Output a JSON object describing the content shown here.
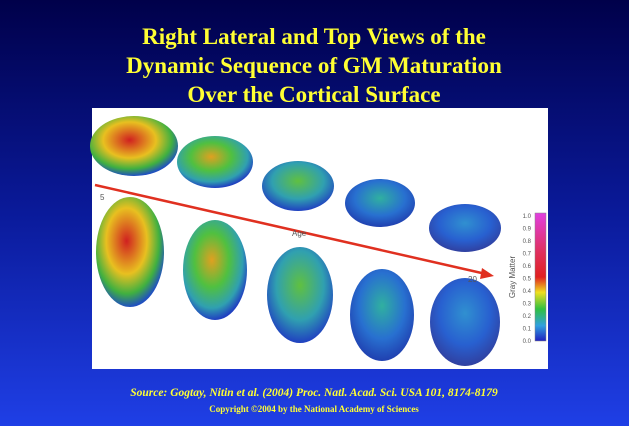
{
  "slide": {
    "title": [
      "Right Lateral and Top Views of the",
      "Dynamic Sequence of GM Maturation",
      "Over the Cortical Surface"
    ],
    "figure": {
      "start_label": "5",
      "axis_label": "Age",
      "end_label": "20",
      "colorbar_title": "Gray Matter",
      "colorbar_ticks": [
        "1.0",
        "0.9",
        "0.8",
        "0.7",
        "0.6",
        "0.5",
        "0.4",
        "0.3",
        "0.2",
        "0.1",
        "0.0"
      ]
    },
    "source": "Source: Gogtay, Nitin et al. (2004) Proc. Natl. Acad. Sci. USA 101, 8174-8179",
    "copyright": "Copyright ©2004 by the National Academy of Sciences"
  }
}
